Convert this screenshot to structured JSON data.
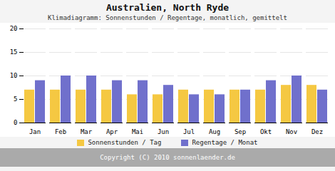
{
  "chart_data": {
    "type": "bar",
    "title": "Australien, North Ryde",
    "subtitle": "Klimadiagramm: Sonnenstunden / Regentage, monatlich, gemittelt",
    "annotations": [
      "Copyright (C) 2010 sonnenlaender.de"
    ],
    "categories": [
      "Jan",
      "Feb",
      "Mar",
      "Apr",
      "Mai",
      "Jun",
      "Jul",
      "Aug",
      "Sep",
      "Okt",
      "Nov",
      "Dez"
    ],
    "series": [
      {
        "name": "Sonnenstunden / Tag",
        "color": "#f5c842",
        "values": [
          7,
          7,
          7,
          7,
          6,
          6,
          7,
          7,
          7,
          7,
          8,
          8
        ]
      },
      {
        "name": "Regentage / Monat",
        "color": "#7070cc",
        "values": [
          9,
          10,
          10,
          9,
          9,
          8,
          6,
          6,
          7,
          9,
          10,
          7
        ]
      }
    ],
    "ylim": [
      0,
      20
    ],
    "yticks": [
      0,
      5,
      10,
      15,
      20
    ],
    "grid": true,
    "legend": "bottom"
  }
}
